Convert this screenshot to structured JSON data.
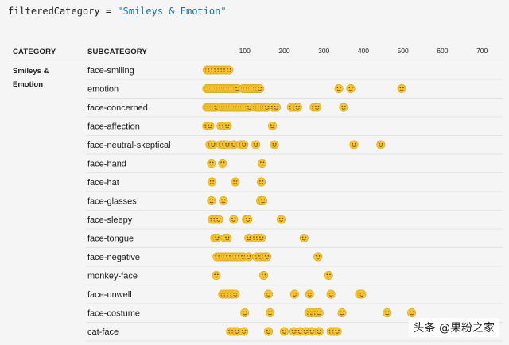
{
  "code": {
    "variable": "filteredCategory",
    "operator": " = ",
    "value": "\"Smileys & Emotion\""
  },
  "headers": {
    "category": "CATEGORY",
    "subcategory": "SUBCATEGORY"
  },
  "category_label": "Smileys & Emotion",
  "watermark": "头条 @果粉之家",
  "chart_data": {
    "type": "scatter",
    "x_ticks": [
      100,
      200,
      300,
      400,
      500,
      600,
      700
    ],
    "xlim": [
      0,
      740
    ],
    "grid": false,
    "categories": [
      "face-smiling",
      "emotion",
      "face-concerned",
      "face-affection",
      "face-neutral-skeptical",
      "face-hand",
      "face-hat",
      "face-glasses",
      "face-sleepy",
      "face-tongue",
      "face-negative",
      "monkey-face",
      "face-unwell",
      "face-costume",
      "cat-face"
    ],
    "points": [
      {
        "row": 0,
        "x": [
          5,
          12,
          20,
          28,
          36,
          44,
          52,
          60
        ]
      },
      {
        "row": 1,
        "x": [
          4,
          10,
          16,
          22,
          28,
          34,
          40,
          46,
          52,
          58,
          64,
          70,
          76,
          82,
          96,
          102,
          108,
          114,
          120,
          126,
          132,
          138,
          338,
          368,
          497
        ]
      },
      {
        "row": 2,
        "x": [
          4,
          10,
          16,
          22,
          28,
          40,
          46,
          52,
          58,
          64,
          70,
          76,
          82,
          88,
          94,
          100,
          106,
          112,
          126,
          132,
          138,
          144,
          150,
          156,
          172,
          180,
          218,
          226,
          234,
          275,
          283,
          350
        ]
      },
      {
        "row": 3,
        "x": [
          4,
          12,
          40,
          48,
          56,
          170
        ]
      },
      {
        "row": 4,
        "x": [
          12,
          20,
          40,
          48,
          56,
          72,
          90,
          98,
          128,
          175,
          376,
          444
        ]
      },
      {
        "row": 5,
        "x": [
          16,
          44,
          144
        ]
      },
      {
        "row": 6,
        "x": [
          17,
          76,
          142
        ]
      },
      {
        "row": 7,
        "x": [
          16,
          46,
          140,
          146
        ]
      },
      {
        "row": 8,
        "x": [
          18,
          26,
          34,
          72,
          104,
          108,
          192
        ]
      },
      {
        "row": 9,
        "x": [
          24,
          30,
          50,
          56,
          110,
          126,
          134,
          142,
          250
        ]
      },
      {
        "row": 10,
        "x": [
          30,
          38,
          46,
          52,
          58,
          66,
          74,
          80,
          88,
          96,
          110,
          130,
          140,
          150,
          156,
          285
        ]
      },
      {
        "row": 11,
        "x": [
          28,
          148,
          312
        ]
      },
      {
        "row": 12,
        "x": [
          44,
          52,
          60,
          68,
          76,
          160,
          226,
          264,
          318,
          390,
          396
        ]
      },
      {
        "row": 13,
        "x": [
          100,
          164,
          262,
          270,
          280,
          288,
          346,
          460,
          522
        ]
      },
      {
        "row": 14,
        "x": [
          64,
          72,
          80,
          98,
          160,
          200,
          224,
          240,
          254,
          270,
          288,
          318,
          326,
          334
        ]
      }
    ]
  }
}
